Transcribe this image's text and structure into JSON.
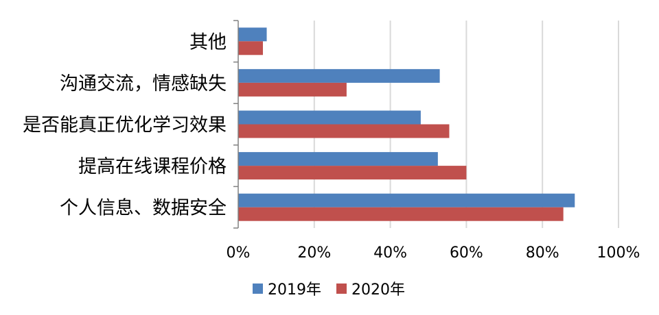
{
  "chart_data": {
    "type": "bar",
    "orientation": "horizontal",
    "categories": [
      "其他",
      "沟通交流，情感缺失",
      "是否能真正优化学习效果",
      "提高在线课程价格",
      "个人信息、数据安全"
    ],
    "series": [
      {
        "name": "2019年",
        "color": "#4F81BD",
        "values": [
          7.5,
          53,
          48,
          52.5,
          88.5
        ]
      },
      {
        "name": "2020年",
        "color": "#C0504D",
        "values": [
          6.5,
          28.5,
          55.5,
          60,
          85.5
        ]
      }
    ],
    "xlim": [
      0,
      100
    ],
    "xticks": [
      0,
      20,
      40,
      60,
      80,
      100
    ],
    "tick_suffix": "%",
    "grid": true,
    "legend_position": "bottom"
  }
}
